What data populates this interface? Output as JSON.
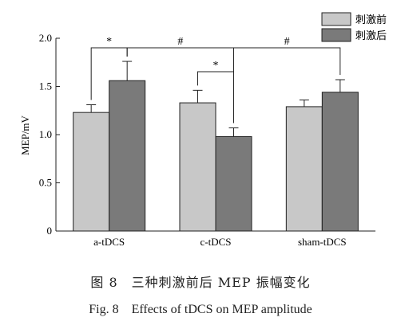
{
  "chart_data": {
    "type": "bar",
    "categories": [
      "a-tDCS",
      "c-tDCS",
      "sham-tDCS"
    ],
    "ylabel": "MEP/mV",
    "ylim": [
      0,
      2.0
    ],
    "yticks": [
      "0",
      "0.5",
      "1.0",
      "1.5",
      "2.0"
    ],
    "legend_position": "top-right",
    "series": [
      {
        "name": "刺激前",
        "color": "#c8c8c8",
        "values": [
          1.23,
          1.33,
          1.29
        ],
        "errors": [
          0.08,
          0.13,
          0.07
        ]
      },
      {
        "name": "刺激后",
        "color": "#7a7a7a",
        "values": [
          1.56,
          0.98,
          1.44
        ],
        "errors": [
          0.2,
          0.09,
          0.13
        ]
      }
    ],
    "annotations": [
      {
        "label": "*",
        "from": "a-tDCS 刺激前",
        "to": "a-tDCS 刺激后"
      },
      {
        "label": "#",
        "from": "a-tDCS 刺激后",
        "to": "c-tDCS 刺激后"
      },
      {
        "label": "*",
        "from": "c-tDCS 刺激前",
        "to": "c-tDCS 刺激后"
      },
      {
        "label": "#",
        "from": "c-tDCS 刺激后",
        "to": "sham-tDCS 刺激后"
      }
    ]
  },
  "caption": {
    "zh": "图 8　三种刺激前后 MEP 振幅变化",
    "en": "Fig. 8　Effects of tDCS on MEP amplitude"
  }
}
